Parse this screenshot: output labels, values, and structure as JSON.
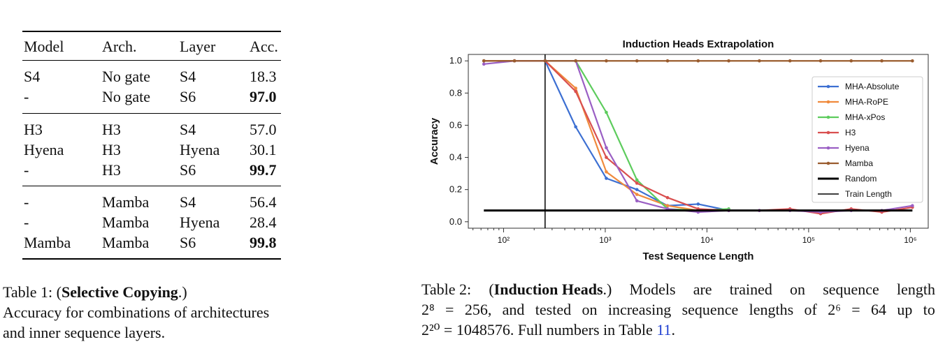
{
  "table1": {
    "headers": [
      "Model",
      "Arch.",
      "Layer",
      "Acc."
    ],
    "rows": [
      [
        "S4",
        "No gate",
        "S4",
        "18.3"
      ],
      [
        "-",
        "No gate",
        "S6",
        "97.0"
      ],
      [
        "H3",
        "H3",
        "S4",
        "57.0"
      ],
      [
        "Hyena",
        "H3",
        "Hyena",
        "30.1"
      ],
      [
        "-",
        "H3",
        "S6",
        "99.7"
      ],
      [
        "-",
        "Mamba",
        "S4",
        "56.4"
      ],
      [
        "-",
        "Mamba",
        "Hyena",
        "28.4"
      ],
      [
        "Mamba",
        "Mamba",
        "S6",
        "99.8"
      ]
    ],
    "bold_rows": [
      1,
      4,
      7
    ]
  },
  "caption1": {
    "prefix": "Table 1: (",
    "title": "Selective Copying",
    "suffix": ".)",
    "line2": "Accuracy for combinations of architectures",
    "line3": "and inner sequence layers."
  },
  "caption2": {
    "line1": [
      "Table 2:",
      "(Induction Heads.)",
      "Models",
      "are",
      "trained",
      "on",
      "sequence",
      "length"
    ],
    "line2": [
      "2⁸",
      "=",
      "256,",
      "and",
      "tested",
      "on",
      "increasing",
      "sequence",
      "lengths",
      "of",
      "2⁶",
      "=",
      "64",
      "up",
      "to"
    ],
    "line3_text": "2²⁰ = 1048576. Full numbers in Table ",
    "ref": "11",
    "line3_end": "."
  },
  "chart_data": {
    "type": "line",
    "title": "Induction Heads Extrapolation",
    "xlabel": "Test Sequence Length",
    "ylabel": "Accuracy",
    "xscale": "log",
    "xlim": [
      45,
      1500000
    ],
    "ylim": [
      -0.04,
      1.04
    ],
    "yticks": [
      "0.0",
      "0.2",
      "0.4",
      "0.6",
      "0.8",
      "1.0"
    ],
    "xticks": [
      "10²",
      "10³",
      "10⁴",
      "10⁵",
      "10⁶"
    ],
    "x": [
      64,
      128,
      256,
      512,
      1024,
      2048,
      4096,
      8192,
      16384,
      32768,
      65536,
      131072,
      262144,
      524288,
      1048576
    ],
    "series": [
      {
        "name": "MHA-Absolute",
        "color": "#3c6fd2",
        "values": [
          1.0,
          1.0,
          1.0,
          0.59,
          0.27,
          0.2,
          0.1,
          0.11,
          0.07,
          null,
          null,
          null,
          null,
          null,
          null
        ]
      },
      {
        "name": "MHA-RoPE",
        "color": "#f08a3c",
        "values": [
          1.0,
          1.0,
          1.0,
          0.83,
          0.31,
          0.17,
          0.1,
          0.07,
          0.07,
          null,
          null,
          null,
          null,
          null,
          null
        ]
      },
      {
        "name": "MHA-xPos",
        "color": "#5dcc5d",
        "values": [
          1.0,
          1.0,
          1.0,
          1.0,
          0.68,
          0.26,
          0.08,
          0.07,
          0.08,
          null,
          null,
          null,
          null,
          null,
          null
        ]
      },
      {
        "name": "H3",
        "color": "#d94f4f",
        "values": [
          1.0,
          1.0,
          1.0,
          0.81,
          0.4,
          0.24,
          0.15,
          0.08,
          0.07,
          0.07,
          0.08,
          0.05,
          0.08,
          0.06,
          0.09
        ]
      },
      {
        "name": "Hyena",
        "color": "#9a5fc4",
        "values": [
          0.98,
          1.0,
          1.0,
          1.0,
          0.46,
          0.13,
          0.08,
          0.06,
          0.07,
          0.07,
          0.07,
          0.06,
          0.07,
          0.07,
          0.1
        ]
      },
      {
        "name": "Mamba",
        "color": "#9a5c2e",
        "values": [
          1.0,
          1.0,
          1.0,
          1.0,
          1.0,
          1.0,
          1.0,
          1.0,
          1.0,
          1.0,
          1.0,
          1.0,
          1.0,
          1.0,
          1.0
        ]
      }
    ],
    "random_baseline": 0.07,
    "train_length": 256,
    "legend_extra": [
      "Random",
      "Train Length"
    ],
    "legend_position": "center-right",
    "grid": false
  }
}
